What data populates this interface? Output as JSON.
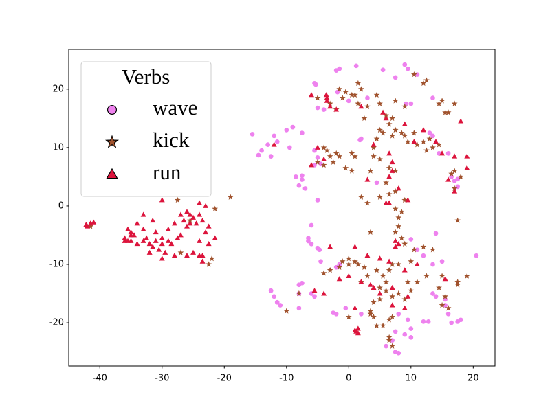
{
  "chart_data": {
    "type": "scatter",
    "legend_title": "Verbs",
    "legend": "upper left",
    "xlim": [
      -45,
      23.5
    ],
    "ylim": [
      -27.4,
      26.8
    ],
    "xticks": [
      -40,
      -30,
      -20,
      -10,
      0,
      10,
      20
    ],
    "yticks": [
      -20,
      -10,
      0,
      10,
      20
    ],
    "series": [
      {
        "name": "wave",
        "color": "#ee82ee",
        "marker": "circle",
        "x": [
          1.2,
          9,
          5.5,
          -1.5,
          -2,
          11,
          -5.5,
          -5.3,
          7.5,
          9.5,
          3,
          -4,
          -5,
          10,
          9.2,
          13.5,
          2,
          1.8,
          -15.5,
          -12,
          -11.5,
          -13,
          -14,
          -14.5,
          -12.5,
          -10,
          -9,
          -7.5,
          -9.5,
          -5.5,
          -5,
          -5.5,
          -4.5,
          -8.5,
          -7.5,
          -7.5,
          -8,
          -7,
          -5,
          4.5,
          -6,
          -6.5,
          -6,
          -5,
          -4.7,
          -6.5,
          -2,
          -1.5,
          -4.5,
          -12.5,
          -12,
          -11,
          -11.5,
          -8,
          -7.5,
          -8,
          -8,
          -5.5,
          -6,
          -2.5,
          -2,
          -0.5,
          2,
          8,
          9.5,
          10,
          7.5,
          9,
          7,
          7.5,
          8,
          6,
          10,
          13.5,
          14,
          15.5,
          16,
          15.5,
          16.5,
          18,
          17.5,
          12,
          12.8,
          20.5,
          14,
          10,
          12,
          15,
          13.5,
          11,
          16.5,
          17,
          17.5,
          17.5,
          14.5,
          16,
          13.5,
          -1.8,
          0,
          13
        ],
        "y": [
          24,
          24.2,
          23.3,
          23.5,
          23.2,
          22.5,
          21,
          20.8,
          22,
          23.5,
          18.5,
          16.5,
          16.8,
          17.5,
          17.5,
          18.5,
          11.5,
          11.3,
          12.3,
          12,
          11,
          10.5,
          9.5,
          8.7,
          8.5,
          13,
          13.5,
          12.5,
          10,
          9.5,
          8.3,
          7,
          7.2,
          5,
          5.2,
          4.5,
          3.5,
          3,
          1,
          4,
          -3.3,
          -5.5,
          -6.5,
          -7.2,
          -7.5,
          -6,
          -10.5,
          -10,
          -9.5,
          -14.5,
          -15.5,
          -17,
          -16.5,
          -13.5,
          -13.2,
          -15,
          -17.5,
          -15.5,
          -15,
          -18.3,
          -18.5,
          -17.5,
          -18.5,
          -18.5,
          -19.5,
          -21,
          -21.5,
          -22,
          -23,
          -25,
          -25.2,
          -24,
          -22.5,
          -15,
          -15.5,
          -17,
          -18.5,
          -16,
          -20,
          -19.5,
          -19.8,
          -19.8,
          -19.8,
          -8.5,
          -4.7,
          -5.7,
          -8.5,
          -9.5,
          -10,
          -7.5,
          5,
          4.3,
          3.3,
          4.6,
          9,
          9,
          12,
          19.5,
          18,
          12.5
        ]
      },
      {
        "name": "kick",
        "color": "#a0522d",
        "marker": "star",
        "x": [
          -41.5,
          -19,
          -21.5,
          -22,
          -22.5,
          -27.5,
          -25.5,
          -27,
          -1.5,
          -0.5,
          0.5,
          1,
          -1,
          1.5,
          2,
          1.5,
          3,
          2.5,
          -3,
          -2,
          -5,
          4.5,
          5,
          6,
          7,
          6.5,
          5,
          5.5,
          4.5,
          4,
          7,
          7.5,
          8.5,
          9,
          9.5,
          10.5,
          11,
          12,
          12.5,
          13,
          13.5,
          14.5,
          10.5,
          12,
          12.5,
          7.5,
          9,
          -4,
          -3.5,
          -3,
          -2,
          -2.5,
          -1.5,
          -5,
          -4,
          0.5,
          1,
          4,
          5,
          6.5,
          7.5,
          6,
          3.5,
          -0.5,
          0.5,
          6.5,
          7.5,
          5,
          2,
          3,
          9,
          8.5,
          7.5,
          8,
          8,
          7.5,
          8.5,
          3.5,
          9,
          10.5,
          12,
          13.5,
          17.5,
          19,
          17.5,
          17.5,
          15.5,
          16,
          15,
          14.5,
          12.5,
          11,
          9.5,
          10,
          9,
          8,
          7,
          6,
          5,
          5,
          4,
          6,
          5.5,
          6.5,
          7,
          8,
          10,
          4.5,
          3,
          2.5,
          1.5,
          1,
          0,
          -1,
          -1.5,
          0,
          -3,
          -4,
          2,
          5.5,
          4.5,
          4,
          3.5,
          6.5,
          7,
          6.5,
          7,
          6.5,
          0,
          3.5,
          17,
          16.5,
          17,
          18,
          15.5,
          17,
          16,
          15,
          14.5,
          -8,
          15,
          -10
        ],
        "y": [
          -3.5,
          1.5,
          -0.5,
          -9,
          -10,
          1,
          -2.5,
          -8,
          20,
          19.5,
          19,
          19,
          18.5,
          21,
          20,
          17.5,
          17,
          15,
          17.5,
          16.5,
          18.5,
          19,
          17.5,
          15.5,
          15,
          14,
          13,
          12.5,
          11.5,
          10,
          12,
          13,
          12.5,
          12,
          11,
          12.5,
          10.5,
          11,
          9.5,
          11.5,
          10,
          10.5,
          22.5,
          21,
          21.5,
          18,
          17,
          10,
          9.5,
          8.5,
          9,
          7.5,
          8.5,
          7.5,
          7,
          9,
          8.5,
          8.5,
          8,
          6.5,
          6,
          4,
          6,
          6.5,
          6,
          2,
          2.5,
          1.5,
          1.5,
          0.5,
          1,
          -1,
          -0.5,
          -2,
          -3.5,
          -4.5,
          -5.5,
          -4.5,
          -6.5,
          -7.5,
          -7,
          -7.5,
          -2.5,
          -12,
          -13,
          -13.5,
          -15.5,
          -17.5,
          -17,
          -14,
          -12,
          -13,
          -13,
          -14.5,
          -16,
          -15,
          -15.5,
          -14.5,
          -14,
          -16,
          -16.5,
          -13,
          -12,
          -11,
          -10,
          -10,
          -9.5,
          -11,
          -12,
          -10.5,
          -10,
          -9.5,
          -10,
          -9.5,
          -10.5,
          -9,
          -11,
          -11.5,
          -13,
          -20.5,
          -20.5,
          -19,
          -18.5,
          -19.5,
          -19,
          -23,
          -24,
          -22.5,
          -19,
          -18,
          6,
          5.5,
          3,
          5,
          16,
          17.5,
          16,
          18,
          17.5,
          -15,
          -12,
          -18
        ]
      },
      {
        "name": "run",
        "color": "#dc143c",
        "marker": "triangle",
        "x": [
          -42,
          -41.5,
          -41,
          -42.2,
          -36,
          -35.5,
          -35.5,
          -36,
          -35,
          -35,
          -34.5,
          -35,
          -34,
          -33,
          -32,
          -33,
          -32.5,
          -31.5,
          -31,
          -30.5,
          -30,
          -31,
          -30,
          -29,
          -28,
          -27.5,
          -27,
          -26.5,
          -26,
          -25.5,
          -25,
          -25.5,
          -26,
          -24.5,
          -24,
          -23.5,
          -23,
          -22.5,
          -23,
          -21.5,
          -22.5,
          -24,
          -25,
          -24,
          -26,
          -23.5,
          -23.5,
          -29,
          -30,
          -33,
          -31.5,
          -34,
          -28,
          -27,
          -24,
          -28.5,
          -29.5,
          -30,
          -32,
          -3.5,
          -3.5,
          -3.6,
          -3,
          -2,
          -6,
          2,
          5.5,
          6,
          9,
          12,
          10.5,
          14,
          18,
          15,
          17,
          19,
          19,
          17,
          16,
          -12,
          -5,
          -4,
          -6,
          4,
          6.5,
          7,
          7,
          6.5,
          3,
          8,
          6.5,
          6,
          9.5,
          7.5,
          7.5,
          8,
          -3,
          1,
          3,
          5,
          6.5,
          9,
          11,
          15.5,
          -1.5,
          0,
          2,
          -5.5,
          -4,
          1.5,
          1.2,
          1,
          1.5,
          5,
          4,
          3.5,
          7,
          9.5,
          9,
          7,
          1
        ],
        "y": [
          -3.5,
          -3,
          -2.8,
          -3.2,
          -5.5,
          -4,
          -6,
          -6,
          -5,
          -6,
          -5,
          -4.5,
          -6.5,
          -6,
          -6.5,
          -4,
          -5.5,
          -7,
          -6,
          -7.5,
          -6.5,
          -4.5,
          -5.5,
          -6,
          -8.5,
          -5.5,
          -5,
          -2.5,
          -1,
          -1.5,
          -2,
          -3,
          -3.5,
          -3,
          -1.5,
          -2.5,
          0,
          -3.5,
          -4.5,
          -5.5,
          -6.5,
          -6,
          -8,
          -8.5,
          -8.5,
          -9.5,
          -8.5,
          -4,
          1,
          -1.5,
          -2.5,
          -3,
          -3,
          -1.5,
          0.5,
          -6.5,
          -8,
          -9,
          -8,
          18.5,
          18,
          19,
          17,
          16.5,
          19,
          17,
          16,
          15,
          14,
          13,
          11,
          11,
          14.5,
          9,
          8.5,
          8.5,
          6.5,
          2.5,
          4.5,
          10.5,
          10,
          8,
          7,
          10.5,
          9,
          7.5,
          6,
          5,
          4.5,
          3,
          0.5,
          0.5,
          1,
          -6,
          -7,
          -6.5,
          -7,
          -7,
          -8.5,
          -9,
          -9.5,
          -11,
          -10,
          -12.5,
          -12.5,
          -12,
          -13,
          -14.5,
          -15,
          -21,
          -21.5,
          -21.3,
          -21.8,
          -15,
          -14,
          -13.5,
          -17,
          -15.5,
          -17.5,
          -14,
          -17.5
        ]
      }
    ]
  }
}
